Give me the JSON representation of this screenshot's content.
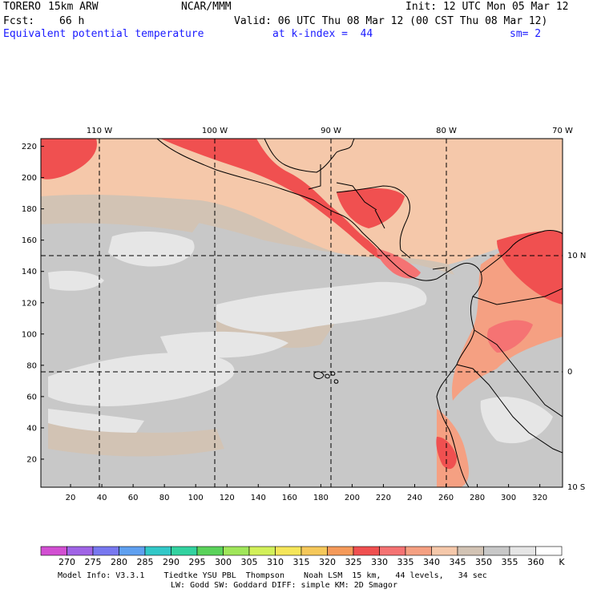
{
  "header": {
    "model": "TORERO",
    "resolution": "15km ARW",
    "center": "NCAR/MMM",
    "init": "Init: 12 UTC Mon 05 Mar 12",
    "fcst_label": "Fcst:",
    "fcst_value": "66 h",
    "valid": "Valid: 06 UTC Thu 08 Mar 12 (00 CST Thu 08 Mar 12)",
    "field": "Equivalent potential temperature",
    "level": "at k-index =  44",
    "smoothing": "sm= 2"
  },
  "map": {
    "lon_labels": [
      "110 W",
      "100 W",
      "90 W",
      "80 W",
      "70 W"
    ],
    "lat_labels": [
      "10 N",
      "0",
      "10 S"
    ],
    "y_ticks": [
      "220",
      "200",
      "180",
      "160",
      "140",
      "120",
      "100",
      "80",
      "60",
      "40",
      "20"
    ],
    "x_ticks": [
      "20",
      "40",
      "60",
      "80",
      "100",
      "120",
      "140",
      "160",
      "180",
      "200",
      "220",
      "240",
      "260",
      "280",
      "300",
      "320"
    ]
  },
  "colorbar": {
    "labels": [
      "270",
      "275",
      "280",
      "285",
      "290",
      "295",
      "300",
      "305",
      "310",
      "315",
      "320",
      "325",
      "330",
      "335",
      "340",
      "345",
      "350",
      "355",
      "360"
    ],
    "unit": "K",
    "colors": [
      "#d24fd2",
      "#a064e6",
      "#7878f0",
      "#5fa0f0",
      "#32c8c8",
      "#32d2a0",
      "#5ad25a",
      "#a0e65a",
      "#d2f05a",
      "#f5e65a",
      "#f5c85a",
      "#f59a5a",
      "#f05050",
      "#f57373",
      "#f5a082",
      "#f5c8aa",
      "#d2c3b4",
      "#c8c8c8",
      "#e6e6e6",
      "#ffffff"
    ]
  },
  "footer": {
    "line1": "Model Info: V3.3.1    Tiedtke YSU PBL  Thompson    Noah LSM  15 km,   44 levels,   34 sec",
    "line2": "LW: Godd SW: Goddard DIFF: simple KM: 2D Smagor"
  }
}
